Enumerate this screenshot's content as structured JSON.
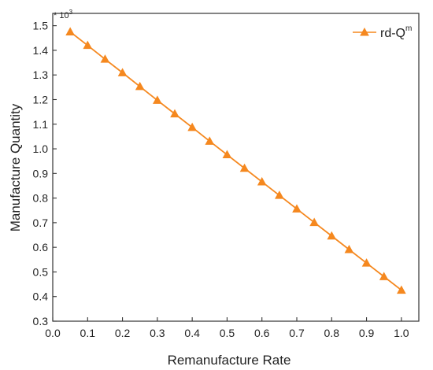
{
  "chart_data": {
    "type": "line",
    "xlabel": "Remanufacture Rate",
    "ylabel": "Manufacture Quantity",
    "y_multiplier_label": "* 10",
    "y_multiplier_exponent": "3",
    "xlim": [
      0.0,
      1.05
    ],
    "ylim": [
      0.3,
      1.55
    ],
    "x_ticks": [
      "0.0",
      "0.1",
      "0.2",
      "0.3",
      "0.4",
      "0.5",
      "0.6",
      "0.7",
      "0.8",
      "0.9",
      "1.0"
    ],
    "y_ticks": [
      "0.3",
      "0.4",
      "0.5",
      "0.6",
      "0.7",
      "0.8",
      "0.9",
      "1.0",
      "1.1",
      "1.2",
      "1.3",
      "1.4",
      "1.5"
    ],
    "grid": false,
    "legend_position": "top-right",
    "series": [
      {
        "name": "rd-Q",
        "name_superscript": "m",
        "color": "#f5881f",
        "marker": "triangle",
        "x": [
          0.05,
          0.1,
          0.15,
          0.2,
          0.25,
          0.3,
          0.35,
          0.4,
          0.45,
          0.5,
          0.55,
          0.6,
          0.65,
          0.7,
          0.75,
          0.8,
          0.85,
          0.9,
          0.95,
          1.0
        ],
        "y": [
          1.475,
          1.42,
          1.364,
          1.309,
          1.253,
          1.197,
          1.142,
          1.087,
          1.031,
          0.976,
          0.921,
          0.866,
          0.811,
          0.756,
          0.701,
          0.646,
          0.591,
          0.536,
          0.481,
          0.426
        ]
      }
    ]
  }
}
